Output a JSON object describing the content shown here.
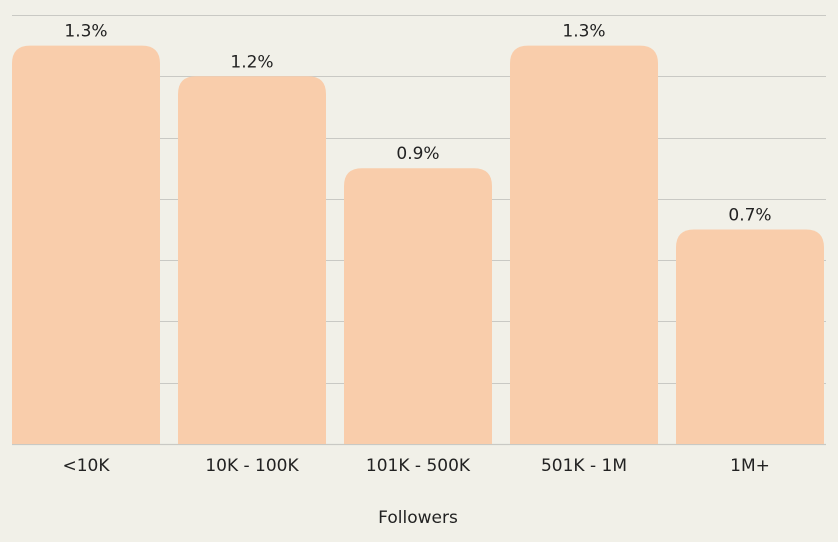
{
  "colors": {
    "background": "#f1f0e8",
    "bar": "#f9cdab",
    "gridline": "#c9c9c4",
    "text": "#222222"
  },
  "chart_data": {
    "type": "bar",
    "categories": [
      "<10K",
      "10K - 100K",
      "101K - 500K",
      "501K - 1M",
      "1M+"
    ],
    "values": [
      1.3,
      1.2,
      0.9,
      1.3,
      0.7
    ],
    "value_labels": [
      "1.3%",
      "1.2%",
      "0.9%",
      "1.3%",
      "0.7%"
    ],
    "title": "",
    "xlabel": "Followers",
    "ylabel": "",
    "ylim": [
      0,
      1.4
    ],
    "grid": true,
    "legend": "none"
  }
}
